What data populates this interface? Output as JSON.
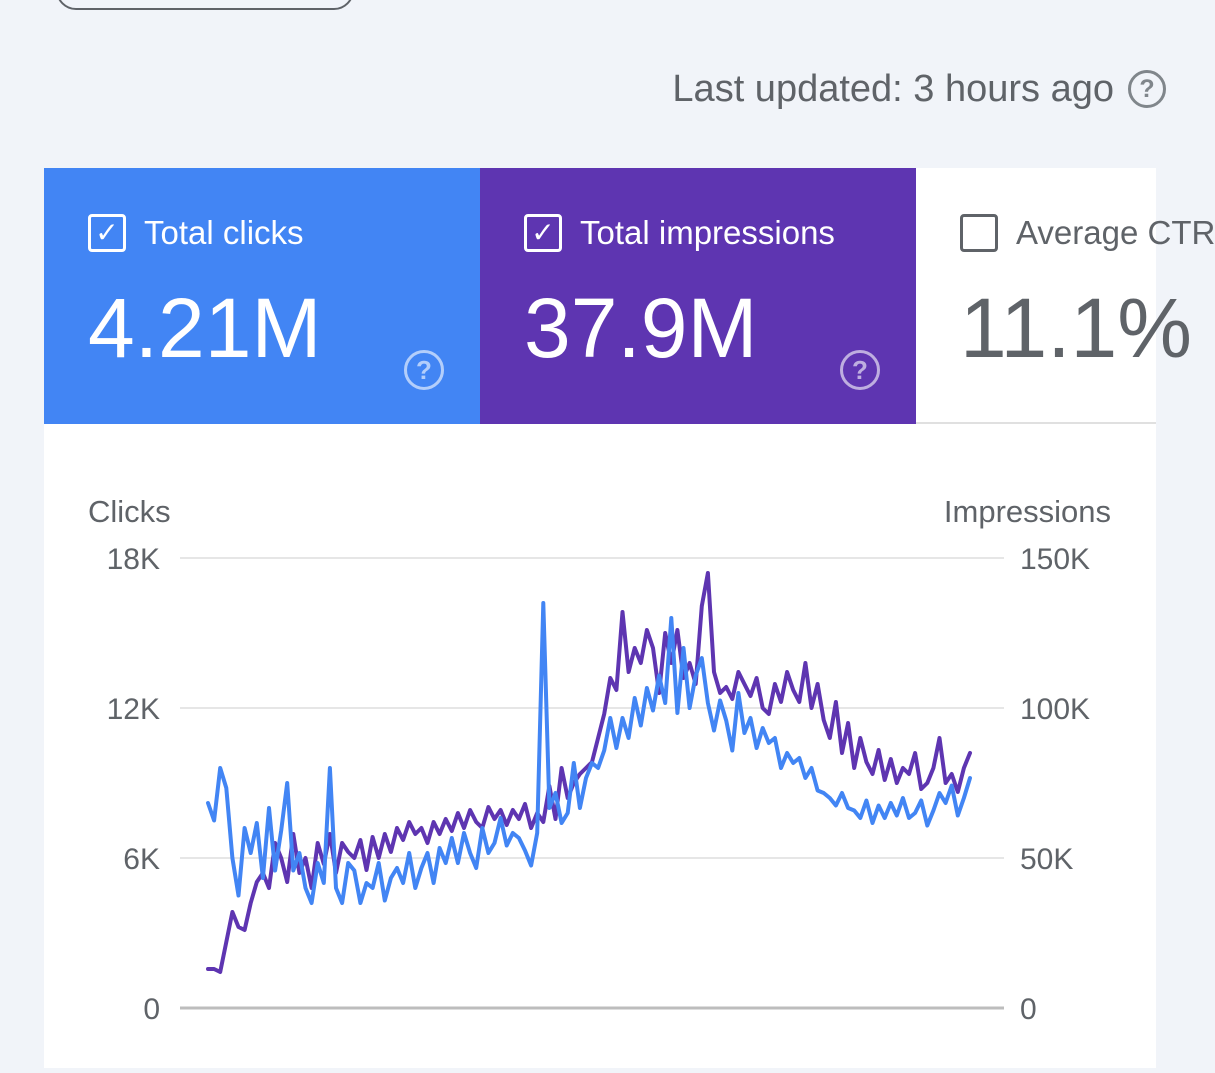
{
  "header": {
    "last_updated": "Last updated: 3 hours ago",
    "help_icon": "help-circle-icon"
  },
  "metrics": [
    {
      "label": "Total clicks",
      "value": "4.21M",
      "checked": true,
      "color": "#4285f4"
    },
    {
      "label": "Total impressions",
      "value": "37.9M",
      "checked": true,
      "color": "#5e35b1"
    },
    {
      "label": "Average CTR",
      "value": "11.1%",
      "checked": false
    }
  ],
  "chart_data": {
    "type": "line",
    "left_axis": {
      "label": "Clicks",
      "ticks": [
        "0",
        "6K",
        "12K",
        "18K"
      ],
      "range": [
        0,
        18000
      ]
    },
    "right_axis": {
      "label": "Impressions",
      "ticks": [
        "0",
        "50K",
        "100K",
        "150K"
      ],
      "range": [
        0,
        150000
      ]
    },
    "grid": true,
    "series": [
      {
        "name": "Total clicks",
        "axis": "left",
        "color": "#4285f4",
        "values": [
          8200,
          7500,
          9600,
          8800,
          6000,
          4500,
          7200,
          6200,
          7400,
          5200,
          8000,
          5500,
          7100,
          9000,
          5500,
          6200,
          4800,
          4200,
          5800,
          5000,
          9600,
          4800,
          4200,
          5800,
          5500,
          4200,
          5000,
          4800,
          5800,
          4300,
          5200,
          5600,
          5000,
          6200,
          4800,
          5600,
          6200,
          5000,
          6400,
          5800,
          6800,
          5800,
          7000,
          6200,
          5600,
          7200,
          6200,
          6600,
          7600,
          6500,
          7000,
          6800,
          6300,
          5700,
          7000,
          16200,
          8000,
          8600,
          7400,
          7800,
          9800,
          8000,
          9200,
          9800,
          9600,
          10300,
          11600,
          10400,
          11600,
          10800,
          12400,
          11300,
          12800,
          11900,
          13300,
          12200,
          15600,
          11800,
          14400,
          12000,
          13300,
          14000,
          12200,
          11100,
          12300,
          11500,
          10300,
          12600,
          11000,
          11600,
          10400,
          11200,
          10600,
          10800,
          9600,
          10200,
          9800,
          10000,
          9200,
          9600,
          8700,
          8600,
          8400,
          8100,
          8600,
          8000,
          7900,
          7600,
          8300,
          7400,
          8100,
          7600,
          8200,
          7700,
          8400,
          7600,
          7800,
          8300,
          7300,
          7900,
          8600,
          8200,
          8900,
          7700,
          8400,
          9200
        ]
      },
      {
        "name": "Total impressions",
        "axis": "right",
        "color": "#5e35b1",
        "values": [
          13000,
          13000,
          12000,
          22000,
          32000,
          27000,
          26000,
          35000,
          42000,
          45000,
          40000,
          55000,
          50000,
          42000,
          58000,
          45000,
          50000,
          40000,
          55000,
          48000,
          58000,
          45000,
          55000,
          52000,
          50000,
          56000,
          46000,
          57000,
          50000,
          58000,
          52000,
          60000,
          56000,
          62000,
          58000,
          60000,
          55000,
          62000,
          58000,
          63000,
          59000,
          65000,
          60000,
          66000,
          62000,
          60000,
          67000,
          63000,
          66000,
          61000,
          66000,
          63000,
          68000,
          60000,
          65000,
          62000,
          74000,
          63000,
          80000,
          70000,
          75000,
          78000,
          80000,
          82000,
          90000,
          98000,
          110000,
          106000,
          132000,
          112000,
          120000,
          115000,
          126000,
          120000,
          105000,
          125000,
          115000,
          126000,
          110000,
          115000,
          108000,
          134000,
          145000,
          112000,
          105000,
          107000,
          103000,
          112000,
          108000,
          104000,
          110000,
          100000,
          98000,
          108000,
          102000,
          112000,
          106000,
          102000,
          115000,
          100000,
          108000,
          96000,
          90000,
          102000,
          85000,
          95000,
          80000,
          90000,
          82000,
          78000,
          86000,
          76000,
          83000,
          75000,
          80000,
          78000,
          85000,
          73000,
          75000,
          80000,
          90000,
          75000,
          78000,
          72000,
          80000,
          85000
        ]
      }
    ]
  }
}
